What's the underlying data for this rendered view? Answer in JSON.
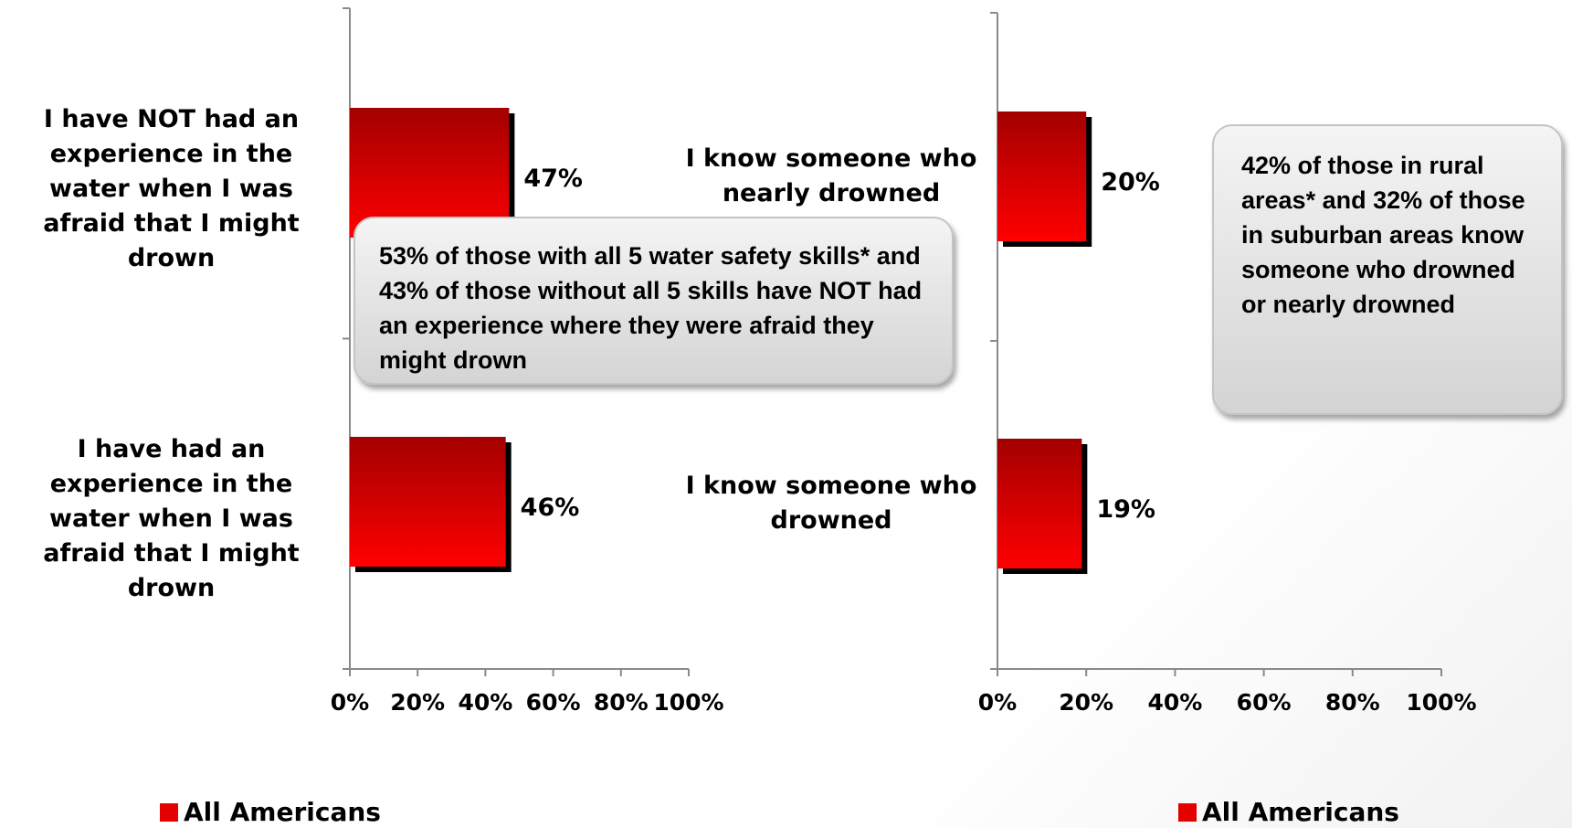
{
  "colors": {
    "bar_top": "#a30000",
    "bar_bottom": "#ff0000",
    "shadow": "#000000",
    "axis": "#8a8a8a"
  },
  "chart_data": [
    {
      "type": "bar",
      "orientation": "horizontal",
      "categories": [
        "I have NOT had an experience in the water when I was afraid that I might drown",
        "I have had an experience in the water when I was afraid that I might drown"
      ],
      "series": [
        {
          "name": "All Americans",
          "values": [
            47,
            46
          ]
        }
      ],
      "data_labels": [
        "47%",
        "46%"
      ],
      "xlim": [
        0,
        100
      ],
      "xticks": [
        "0%",
        "20%",
        "40%",
        "60%",
        "80%",
        "100%"
      ],
      "legend": "bottom",
      "callout": "53% of those with all 5 water safety skills* and 43% of those without all 5 skills have NOT had an experience where they were afraid they might drown"
    },
    {
      "type": "bar",
      "orientation": "horizontal",
      "categories": [
        "I know someone who nearly drowned",
        "I know someone who drowned"
      ],
      "series": [
        {
          "name": "All Americans",
          "values": [
            20,
            19
          ]
        }
      ],
      "data_labels": [
        "20%",
        "19%"
      ],
      "xlim": [
        0,
        100
      ],
      "xticks": [
        "0%",
        "20%",
        "40%",
        "60%",
        "80%",
        "100%"
      ],
      "legend": "bottom",
      "callout": "42% of those in rural areas* and 32% of those in suburban areas know someone who drowned or nearly drowned"
    }
  ]
}
